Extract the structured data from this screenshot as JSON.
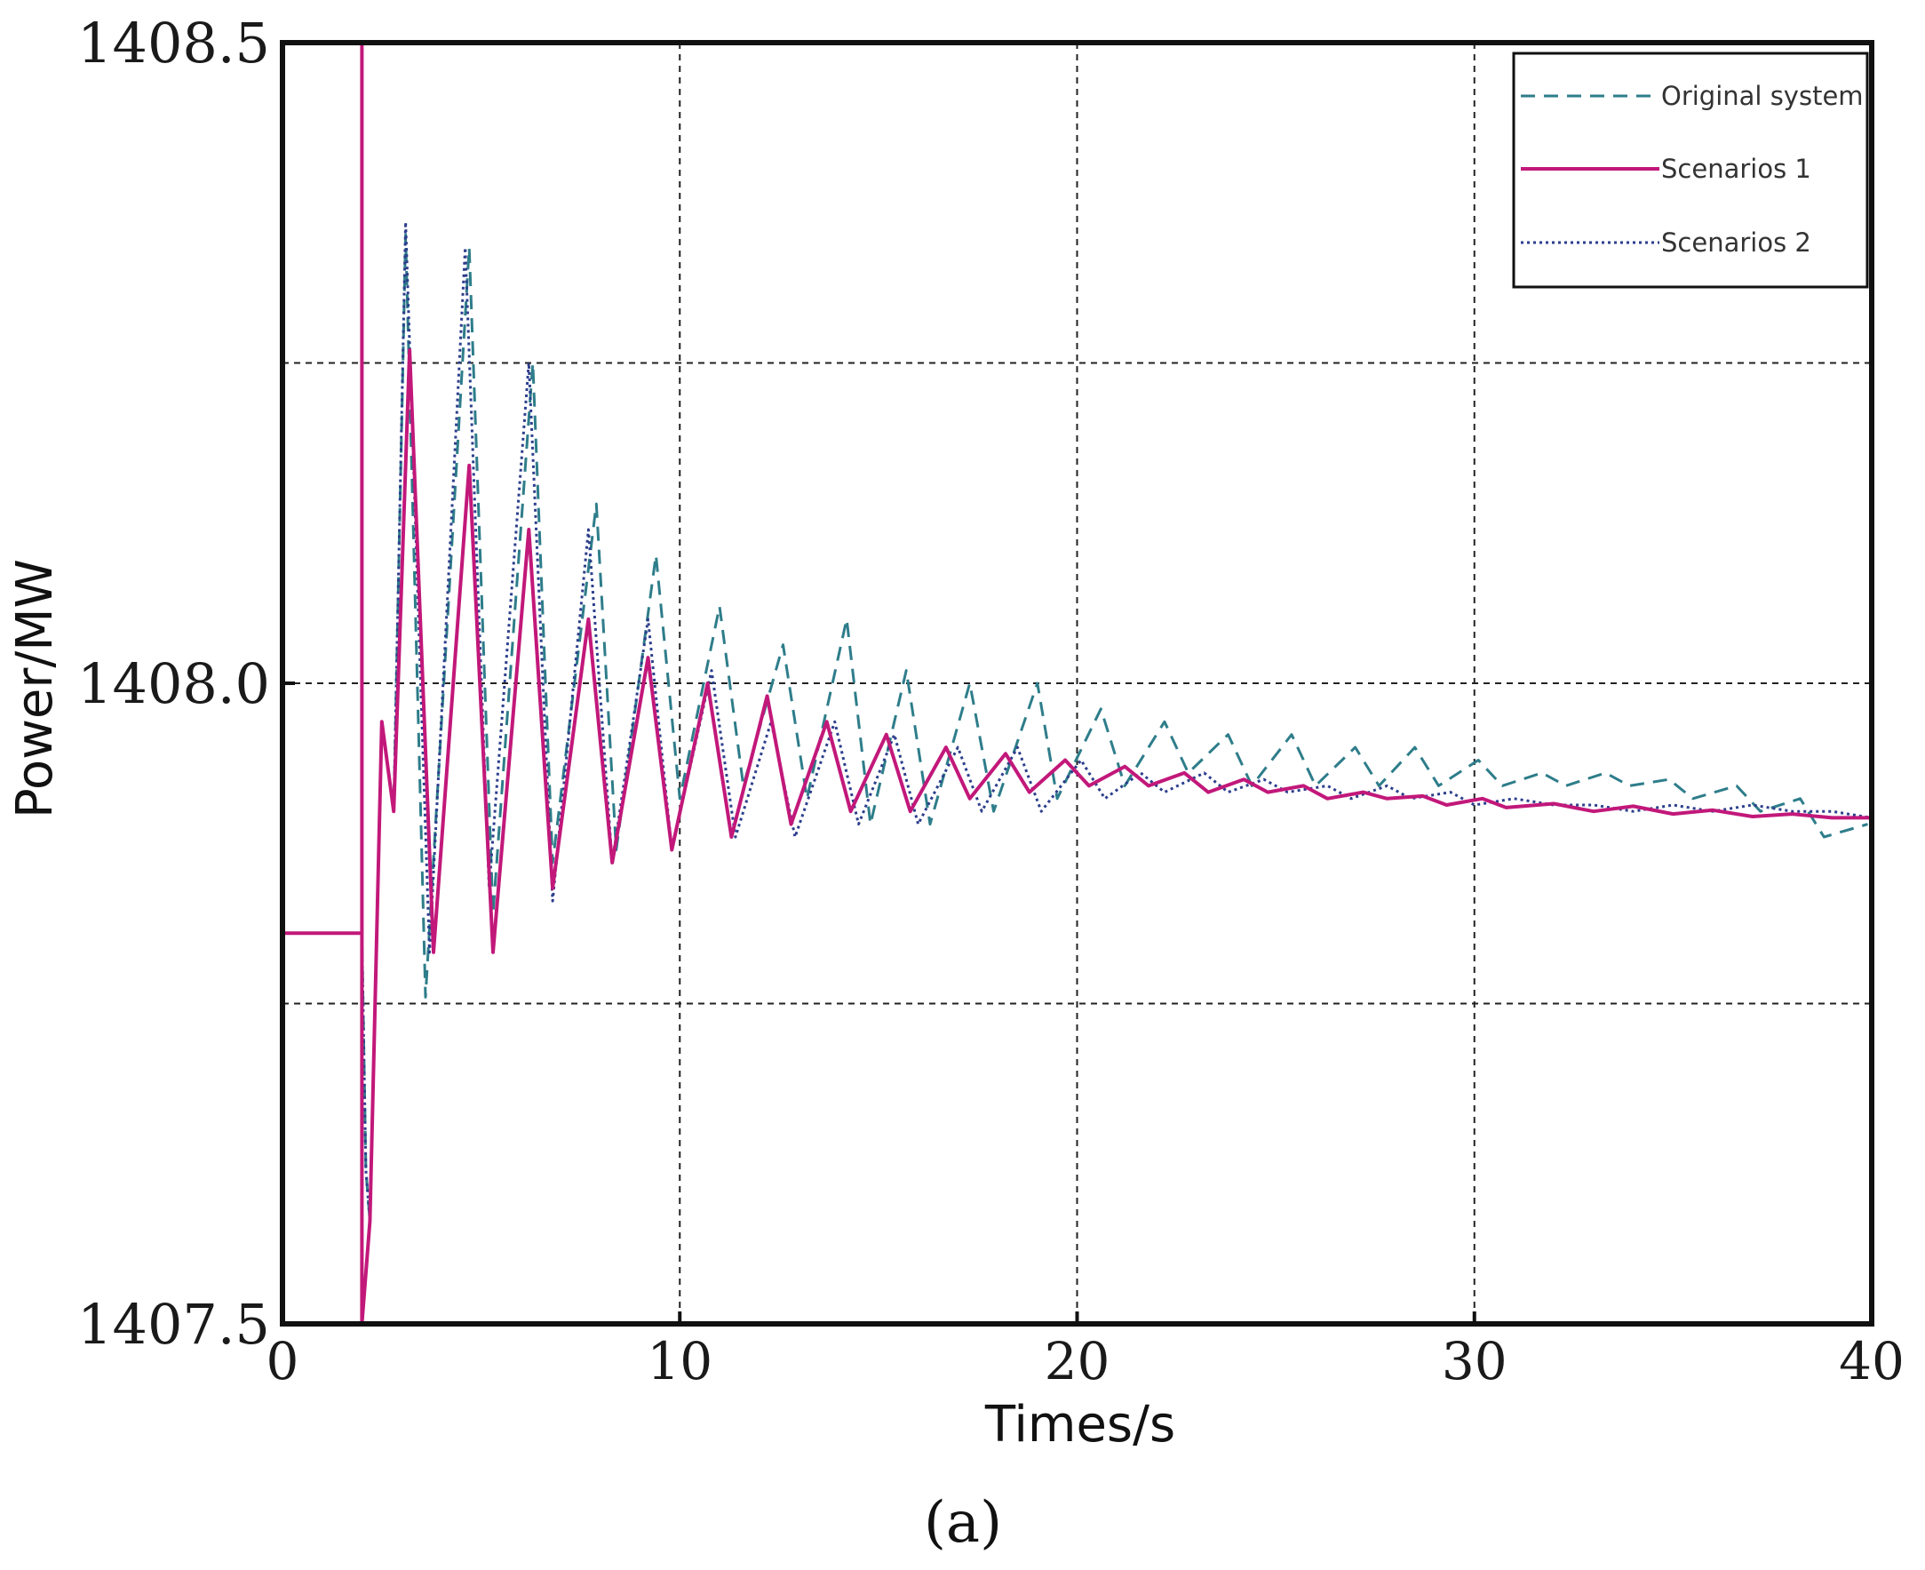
{
  "chart_data": {
    "type": "line",
    "title": "",
    "xlabel": "Times/s",
    "ylabel": "Power/MW",
    "xlim": [
      0,
      40
    ],
    "ylim": [
      1407.5,
      1408.5
    ],
    "x_ticks": [
      0,
      10,
      20,
      30,
      40
    ],
    "x_tick_labels": [
      "0",
      "10",
      "20",
      "30",
      "40"
    ],
    "y_ticks": [
      1407.5,
      1408.0,
      1408.5
    ],
    "y_tick_labels": [
      "1407.5",
      "1408.0",
      "1408.5"
    ],
    "grid": true,
    "legend_position": "top-right",
    "caption": "(a)",
    "colors": {
      "original": "#2e7d8a",
      "scenario1": "#c2187a",
      "scenario2": "#2c3e8c"
    },
    "series": [
      {
        "name": "Original system",
        "style": "dashed",
        "color_key": "original",
        "initial_value": 1407.805,
        "fault_time": 2.0,
        "final_value": 1407.895,
        "points": [
          [
            3.1,
            1408.35
          ],
          [
            3.6,
            1407.755
          ],
          [
            4.7,
            1408.34
          ],
          [
            5.3,
            1407.82
          ],
          [
            6.3,
            1408.25
          ],
          [
            6.8,
            1407.86
          ],
          [
            7.9,
            1408.14
          ],
          [
            8.4,
            1407.87
          ],
          [
            9.4,
            1408.1
          ],
          [
            10.0,
            1407.91
          ],
          [
            11.0,
            1408.06
          ],
          [
            11.6,
            1407.92
          ],
          [
            12.6,
            1408.03
          ],
          [
            13.2,
            1407.91
          ],
          [
            14.2,
            1408.05
          ],
          [
            14.8,
            1407.89
          ],
          [
            15.7,
            1408.01
          ],
          [
            16.3,
            1407.89
          ],
          [
            17.3,
            1408.0
          ],
          [
            17.9,
            1407.9
          ],
          [
            19.0,
            1408.0
          ],
          [
            19.5,
            1407.91
          ],
          [
            20.6,
            1407.98
          ],
          [
            21.2,
            1407.92
          ],
          [
            22.2,
            1407.97
          ],
          [
            22.8,
            1407.93
          ],
          [
            23.8,
            1407.96
          ],
          [
            24.4,
            1407.92
          ],
          [
            25.4,
            1407.96
          ],
          [
            26.0,
            1407.92
          ],
          [
            27.0,
            1407.95
          ],
          [
            27.6,
            1407.92
          ],
          [
            28.5,
            1407.95
          ],
          [
            29.1,
            1407.92
          ],
          [
            30.1,
            1407.94
          ],
          [
            30.7,
            1407.92
          ],
          [
            31.7,
            1407.93
          ],
          [
            32.3,
            1407.92
          ],
          [
            33.3,
            1407.93
          ],
          [
            33.9,
            1407.92
          ],
          [
            34.9,
            1407.925
          ],
          [
            35.5,
            1407.91
          ],
          [
            36.6,
            1407.92
          ],
          [
            37.2,
            1407.9
          ],
          [
            38.2,
            1407.91
          ],
          [
            38.8,
            1407.88
          ],
          [
            39.9,
            1407.89
          ]
        ]
      },
      {
        "name": "Scenarios 1",
        "style": "solid",
        "color_key": "scenario1",
        "initial_value": 1407.805,
        "fault_time": 2.0,
        "final_value": 1407.895,
        "points": [
          [
            3.2,
            1408.26
          ],
          [
            3.8,
            1407.79
          ],
          [
            4.7,
            1408.17
          ],
          [
            5.3,
            1407.79
          ],
          [
            6.2,
            1408.12
          ],
          [
            6.8,
            1407.84
          ],
          [
            7.7,
            1408.05
          ],
          [
            8.3,
            1407.86
          ],
          [
            9.2,
            1408.02
          ],
          [
            9.8,
            1407.87
          ],
          [
            10.7,
            1408.0
          ],
          [
            11.3,
            1407.88
          ],
          [
            12.2,
            1407.99
          ],
          [
            12.8,
            1407.89
          ],
          [
            13.7,
            1407.97
          ],
          [
            14.3,
            1407.9
          ],
          [
            15.2,
            1407.96
          ],
          [
            15.8,
            1407.9
          ],
          [
            16.7,
            1407.95
          ],
          [
            17.3,
            1407.91
          ],
          [
            18.2,
            1407.945
          ],
          [
            18.8,
            1407.915
          ],
          [
            19.7,
            1407.94
          ],
          [
            20.3,
            1407.92
          ],
          [
            21.2,
            1407.935
          ],
          [
            21.8,
            1407.92
          ],
          [
            22.7,
            1407.93
          ],
          [
            23.3,
            1407.915
          ],
          [
            24.2,
            1407.925
          ],
          [
            24.8,
            1407.915
          ],
          [
            25.7,
            1407.92
          ],
          [
            26.3,
            1407.91
          ],
          [
            27.2,
            1407.915
          ],
          [
            27.8,
            1407.91
          ],
          [
            28.7,
            1407.912
          ],
          [
            29.3,
            1407.905
          ],
          [
            30.2,
            1407.91
          ],
          [
            30.8,
            1407.903
          ],
          [
            32.0,
            1407.906
          ],
          [
            33.0,
            1407.9
          ],
          [
            34.0,
            1407.904
          ],
          [
            35.0,
            1407.898
          ],
          [
            36.0,
            1407.901
          ],
          [
            37.0,
            1407.896
          ],
          [
            38.0,
            1407.898
          ],
          [
            39.0,
            1407.895
          ],
          [
            40.0,
            1407.895
          ]
        ]
      },
      {
        "name": "Scenarios 2",
        "style": "dotted",
        "color_key": "scenario2",
        "initial_value": 1407.805,
        "fault_time": 2.0,
        "final_value": 1407.895,
        "points": [
          [
            3.1,
            1408.36
          ],
          [
            3.7,
            1407.79
          ],
          [
            4.6,
            1408.34
          ],
          [
            5.2,
            1407.84
          ],
          [
            6.2,
            1408.25
          ],
          [
            6.8,
            1407.83
          ],
          [
            7.7,
            1408.12
          ],
          [
            8.3,
            1407.86
          ],
          [
            9.2,
            1408.05
          ],
          [
            9.8,
            1407.87
          ],
          [
            10.8,
            1408.01
          ],
          [
            11.4,
            1407.88
          ],
          [
            12.3,
            1407.97
          ],
          [
            12.9,
            1407.88
          ],
          [
            13.9,
            1407.97
          ],
          [
            14.5,
            1407.89
          ],
          [
            15.4,
            1407.96
          ],
          [
            16.0,
            1407.89
          ],
          [
            17.0,
            1407.95
          ],
          [
            17.6,
            1407.9
          ],
          [
            18.5,
            1407.95
          ],
          [
            19.1,
            1407.9
          ],
          [
            20.1,
            1407.94
          ],
          [
            20.7,
            1407.91
          ],
          [
            21.6,
            1407.93
          ],
          [
            22.2,
            1407.915
          ],
          [
            23.2,
            1407.93
          ],
          [
            23.8,
            1407.915
          ],
          [
            24.7,
            1407.925
          ],
          [
            25.3,
            1407.915
          ],
          [
            26.3,
            1407.92
          ],
          [
            26.9,
            1407.91
          ],
          [
            27.8,
            1407.92
          ],
          [
            28.4,
            1407.91
          ],
          [
            29.4,
            1407.915
          ],
          [
            30.0,
            1407.905
          ],
          [
            31.0,
            1407.91
          ],
          [
            32.0,
            1407.905
          ],
          [
            33.0,
            1407.905
          ],
          [
            34.0,
            1407.9
          ],
          [
            35.0,
            1407.905
          ],
          [
            36.0,
            1407.9
          ],
          [
            37.0,
            1407.905
          ],
          [
            38.0,
            1407.9
          ],
          [
            39.0,
            1407.9
          ],
          [
            40.0,
            1407.895
          ]
        ]
      }
    ]
  }
}
